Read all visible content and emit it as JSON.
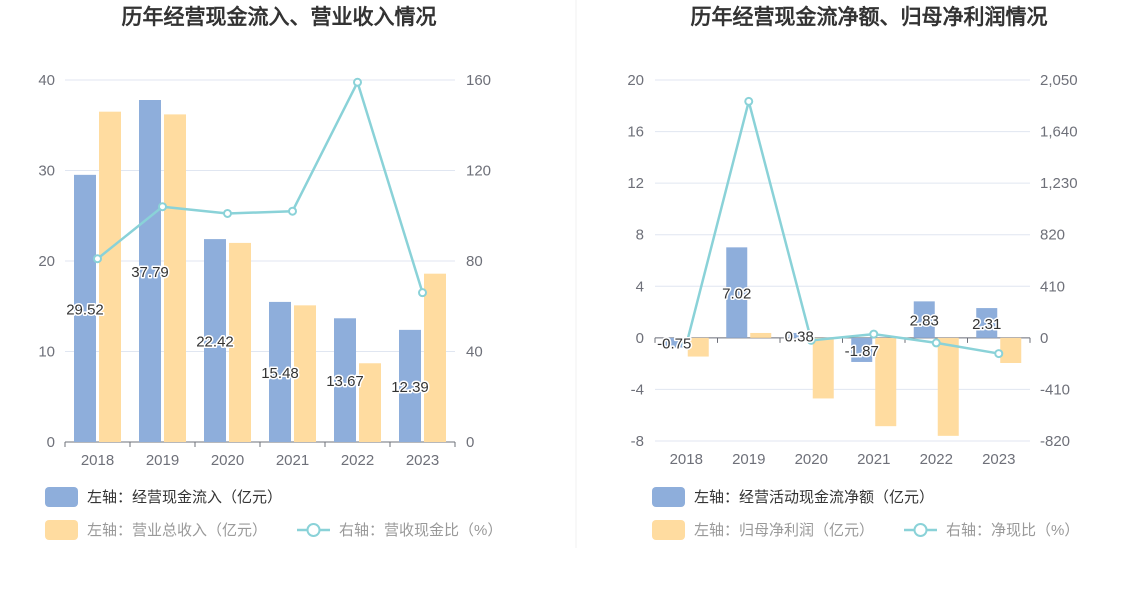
{
  "colors": {
    "bar_primary": "#8eaedb",
    "bar_secondary": "#ffdca0",
    "line": "#8ad2d8"
  },
  "chart_data": [
    {
      "type": "bar",
      "title": "历年经营现金流入、营业收入情况",
      "categories": [
        "2018",
        "2019",
        "2020",
        "2021",
        "2022",
        "2023"
      ],
      "y_left": {
        "min": 0,
        "max": 40,
        "ticks": [
          "0",
          "10",
          "20",
          "30",
          "40"
        ]
      },
      "y_right": {
        "min": 0,
        "max": 160,
        "ticks": [
          "0",
          "40",
          "80",
          "120",
          "160"
        ]
      },
      "series": [
        {
          "name": "左轴：经营现金流入（亿元）",
          "kind": "bar",
          "axis": "left",
          "values": [
            29.52,
            37.79,
            22.42,
            15.48,
            13.67,
            12.39
          ],
          "labels": [
            "29.52",
            "37.79",
            "22.42",
            "15.48",
            "13.67",
            "12.39"
          ]
        },
        {
          "name": "左轴：营业总收入（亿元）",
          "kind": "bar",
          "axis": "left",
          "values": [
            36.5,
            36.2,
            22.0,
            15.1,
            8.7,
            18.6
          ]
        },
        {
          "name": "右轴：营收现金比（%）",
          "kind": "line",
          "axis": "right",
          "values": [
            81,
            104,
            101,
            102,
            159,
            66
          ]
        }
      ],
      "grid": true,
      "legend_position": "bottom-left"
    },
    {
      "type": "bar",
      "title": "历年经营现金流净额、归母净利润情况",
      "categories": [
        "2018",
        "2019",
        "2020",
        "2021",
        "2022",
        "2023"
      ],
      "y_left": {
        "min": -8,
        "max": 20,
        "ticks": [
          "-8",
          "-4",
          "0",
          "4",
          "8",
          "12",
          "16",
          "20"
        ]
      },
      "y_right": {
        "min": -820,
        "max": 2050,
        "ticks": [
          "-820",
          "-410",
          "0",
          "410",
          "820",
          "1,230",
          "1,640",
          "2,050"
        ]
      },
      "series": [
        {
          "name": "左轴：经营活动现金流净额（亿元）",
          "kind": "bar",
          "axis": "left",
          "values": [
            -0.75,
            7.02,
            0.38,
            -1.87,
            2.83,
            2.31
          ],
          "labels": [
            "-0.75",
            "7.02",
            "0.38",
            "-1.87",
            "2.83",
            "2.31"
          ]
        },
        {
          "name": "左轴：归母净利润（亿元）",
          "kind": "bar",
          "axis": "left",
          "values": [
            -1.45,
            0.38,
            -4.7,
            -6.85,
            -7.6,
            -1.95
          ]
        },
        {
          "name": "右轴：净现比（%）",
          "kind": "line",
          "axis": "right",
          "values": [
            -55,
            1880,
            -20,
            30,
            -40,
            -125
          ]
        }
      ],
      "grid": true,
      "legend_position": "bottom-left"
    }
  ]
}
